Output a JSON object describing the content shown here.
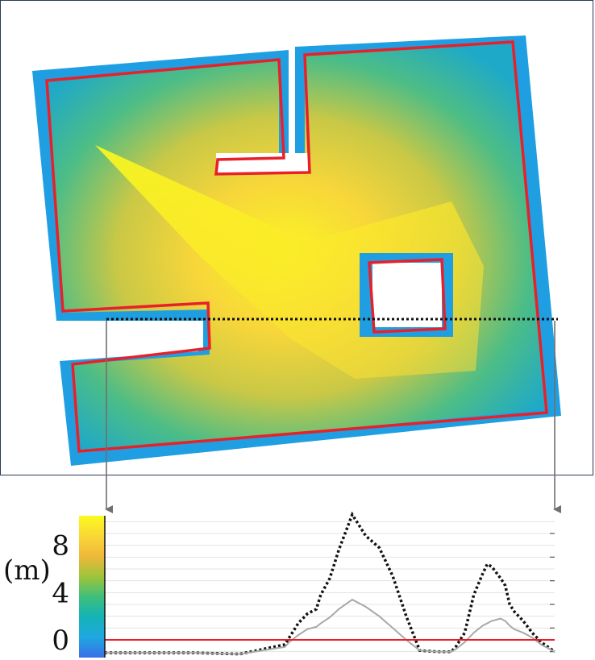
{
  "figure": {
    "unit_label": "(m)"
  },
  "colorbar": {
    "min": -1.5,
    "max": 10.5,
    "colors": [
      "#3a6fe8",
      "#1fa7e0",
      "#14b3b8",
      "#3fbf7a",
      "#9ec43a",
      "#f0b83a",
      "#f9d735",
      "#fafb1e"
    ],
    "tick_labels": [
      "8",
      "4",
      "0"
    ],
    "tick_values": [
      8,
      4,
      0
    ]
  },
  "map": {
    "free_space_edge_color": "#1f9fe2",
    "boundary_color": "#e8202a",
    "section_line_style": "dotted"
  },
  "chart_data": {
    "type": "line",
    "title": "",
    "xlabel": "",
    "ylabel": "(m)",
    "ylim": [
      -1.5,
      10.5
    ],
    "yticks": [
      0,
      4,
      8
    ],
    "grid": true,
    "x": [
      0,
      10,
      20,
      30,
      40,
      41,
      43,
      45,
      47,
      48,
      50,
      52,
      55,
      58,
      61,
      64,
      67,
      70,
      74,
      77,
      78,
      80,
      82,
      84,
      85,
      86,
      88,
      89,
      90,
      91,
      93,
      95,
      97,
      100
    ],
    "series": [
      {
        "style": "dotted",
        "color": "#111111",
        "values": [
          -1.1,
          -1.1,
          -1.1,
          -1.2,
          -0.4,
          0.2,
          1.4,
          2.2,
          2.6,
          3.8,
          5.2,
          7.6,
          10.6,
          8.8,
          7.8,
          5.4,
          2.0,
          -0.9,
          -1.0,
          -1.0,
          -0.6,
          0.6,
          3.8,
          5.6,
          6.4,
          6.2,
          5.2,
          4.6,
          3.0,
          2.4,
          1.6,
          0.6,
          -0.2,
          -1.0
        ]
      },
      {
        "style": "solid",
        "color": "#a8a8a8",
        "values": [
          -1.1,
          -1.1,
          -1.1,
          -1.2,
          -0.6,
          -0.2,
          0.4,
          0.9,
          1.1,
          1.4,
          1.9,
          2.6,
          3.4,
          2.8,
          2.0,
          1.0,
          0.0,
          -0.9,
          -1.0,
          -1.0,
          -0.8,
          -0.2,
          0.6,
          1.2,
          1.4,
          1.6,
          1.8,
          1.6,
          1.2,
          0.9,
          0.6,
          0.2,
          -0.4,
          -1.0
        ]
      },
      {
        "style": "solid",
        "color": "#ee1c24",
        "values": [
          0,
          0,
          0,
          0,
          0,
          0,
          0,
          0,
          0,
          0,
          0,
          0,
          0,
          0,
          0,
          0,
          0,
          0,
          0,
          0,
          0,
          0,
          0,
          0,
          0,
          0,
          0,
          0,
          0,
          0,
          0,
          0,
          0,
          0
        ]
      }
    ]
  }
}
